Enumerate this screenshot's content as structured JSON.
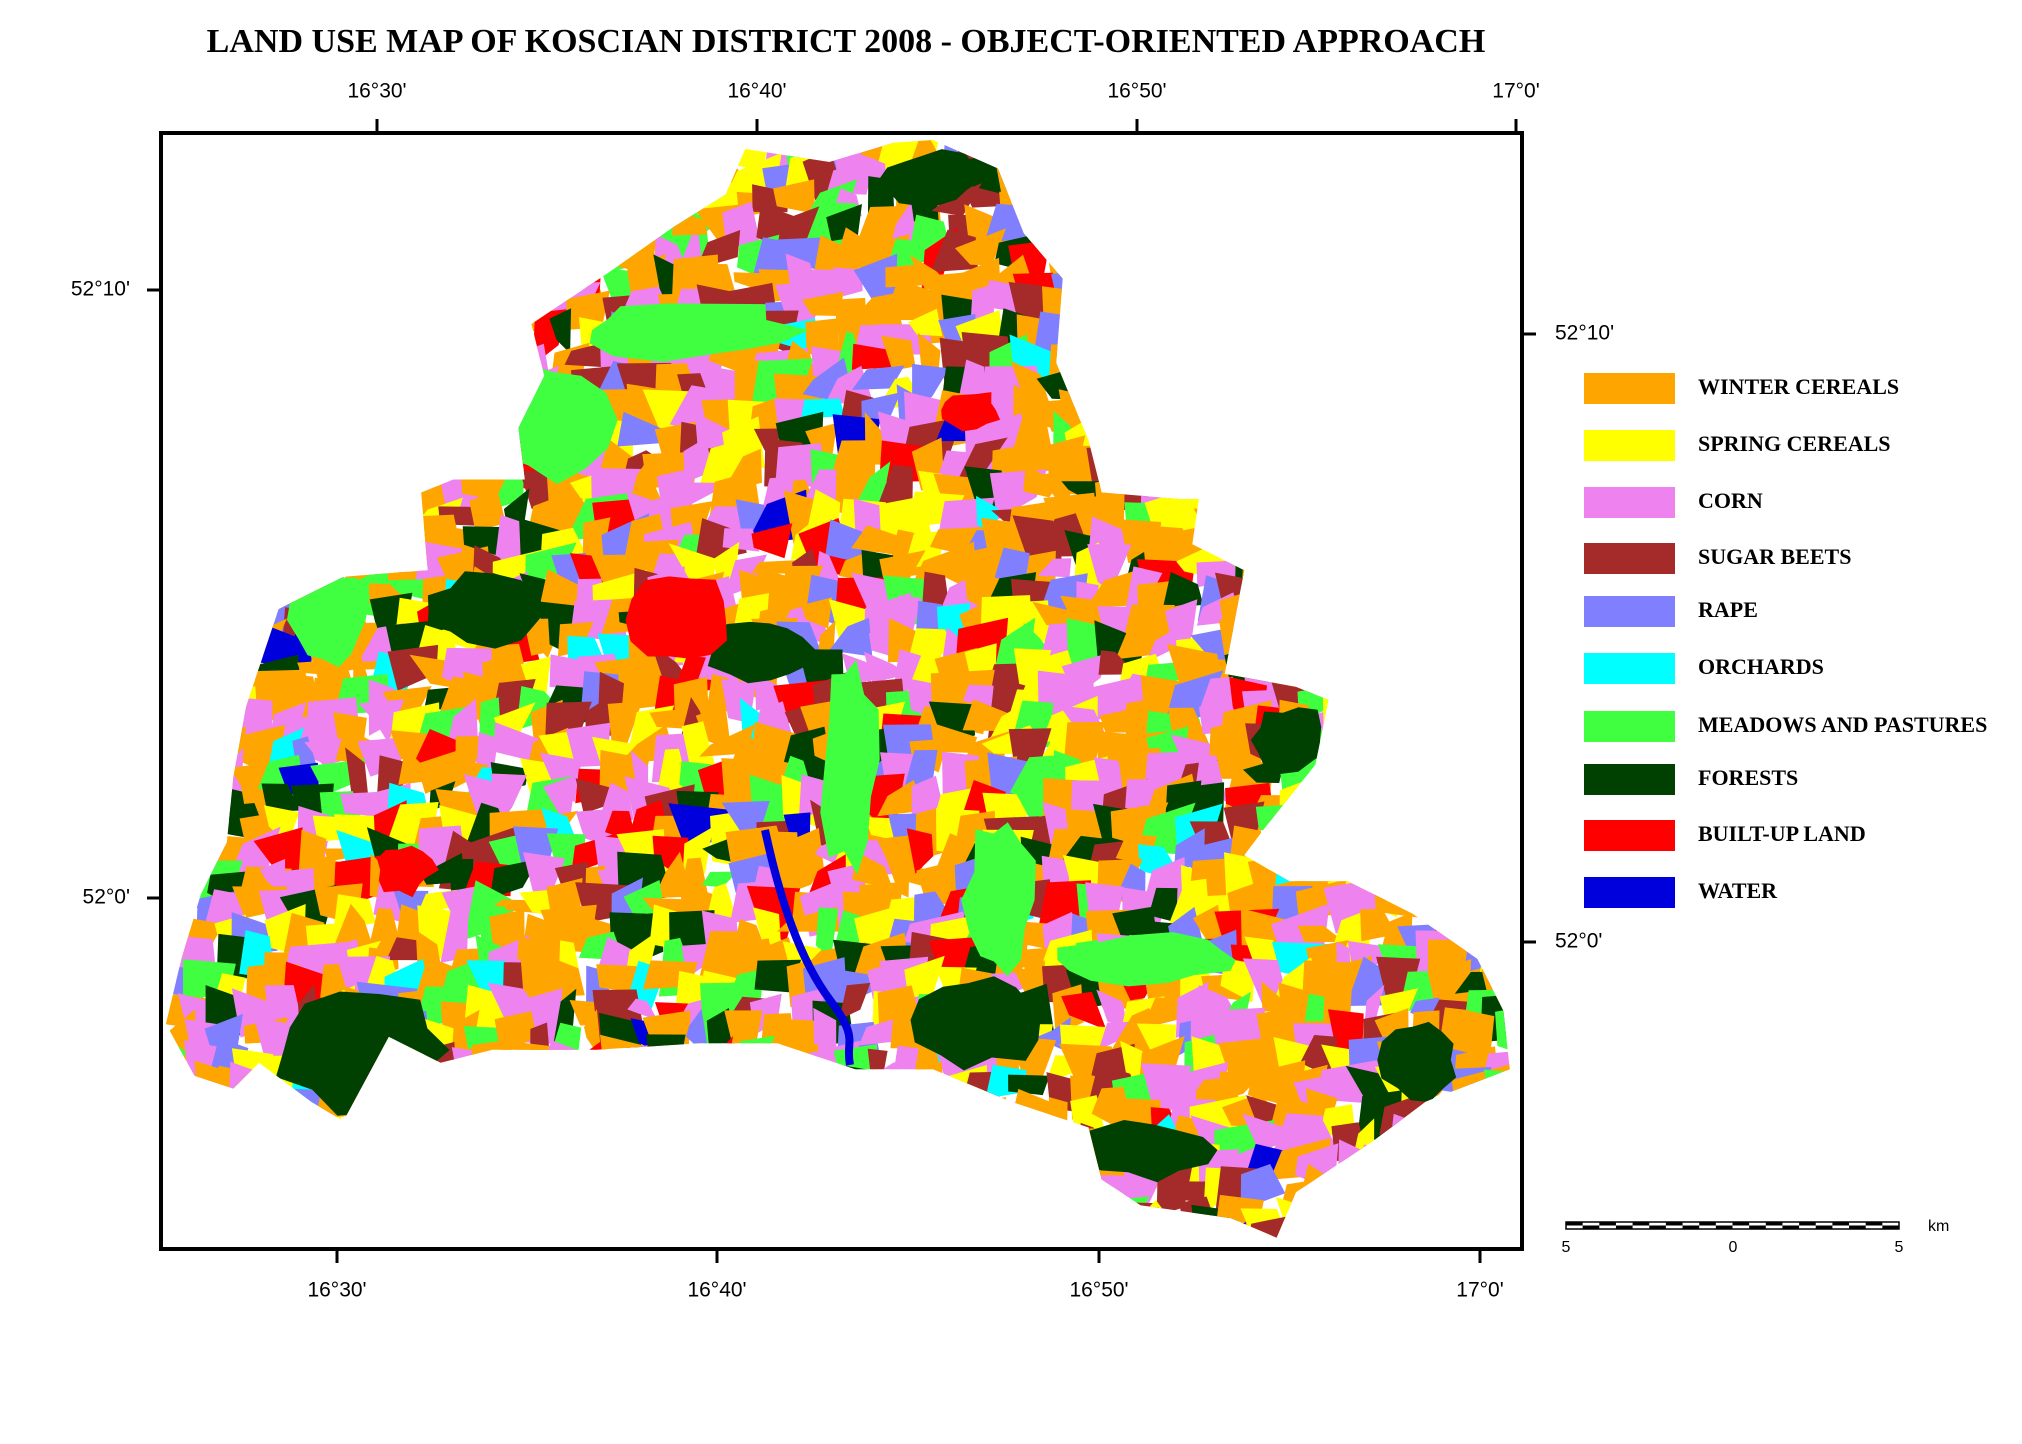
{
  "title": "LAND  USE MAP OF KOSCIAN DISTRICT  2008 - OBJECT-ORIENTED  APPROACH",
  "top_labels": [
    "16°30'",
    "16°40'",
    "16°50'",
    "17°0'"
  ],
  "bottom_labels": [
    "16°30'",
    "16°40'",
    "16°50'",
    "17°0'"
  ],
  "left_labels": [
    "52°10'",
    "52°0'"
  ],
  "right_labels": [
    "52°10'",
    "52°0'"
  ],
  "legend": [
    {
      "label": "WINTER  CEREALS",
      "color": "#ffa500"
    },
    {
      "label": "SPRING  CEREALS",
      "color": "#ffff00"
    },
    {
      "label": "CORN",
      "color": "#ee82ee"
    },
    {
      "label": "SUGAR  BEETS",
      "color": "#a52a2a"
    },
    {
      "label": "RAPE",
      "color": "#8080ff"
    },
    {
      "label": "ORCHARDS",
      "color": "#00ffff"
    },
    {
      "label": "MEADOWS AND PASTURES",
      "color": "#40ff40"
    },
    {
      "label": "FORESTS",
      "color": "#004000"
    },
    {
      "label": "BUILT-UP  LAND",
      "color": "#ff0000"
    },
    {
      "label": "WATER",
      "color": "#0000dd"
    }
  ],
  "scale_bar": {
    "labels": [
      "5",
      "0",
      "5"
    ],
    "unit": "km"
  }
}
